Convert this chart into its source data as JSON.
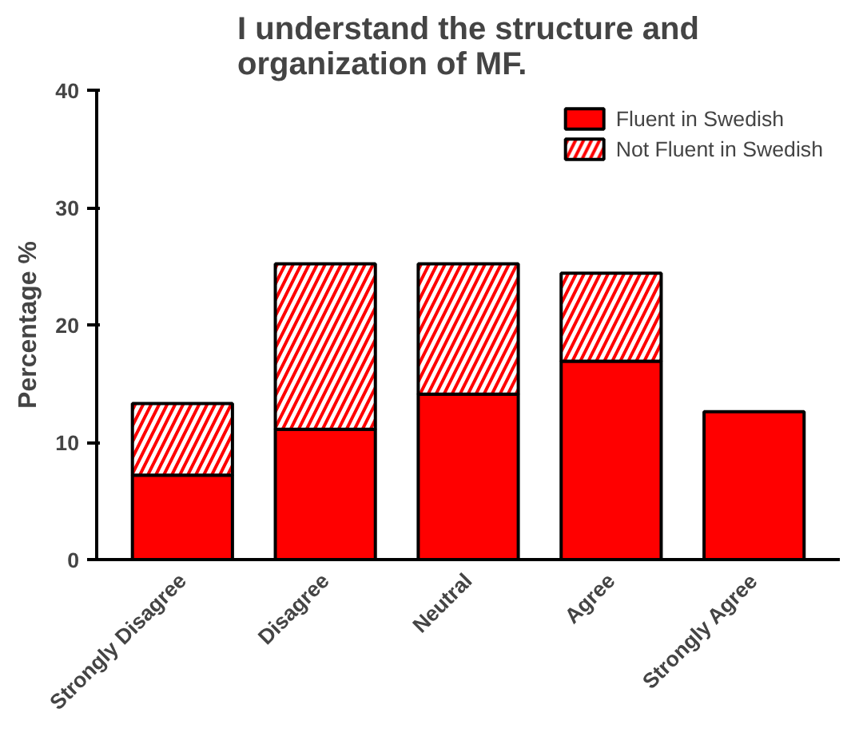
{
  "chart_data": {
    "type": "bar",
    "title": "I understand the structure and organization of MF.",
    "ylabel": "Percentage %",
    "categories": [
      "Strongly Disagree",
      "Disagree",
      "Neutral",
      "Agree",
      "Strongly Agree"
    ],
    "stacked": true,
    "ylim": [
      0,
      40
    ],
    "yticks": [
      0,
      10,
      20,
      30,
      40
    ],
    "grid": false,
    "legend": "top right",
    "series": [
      {
        "name": "Fluent in Swedish",
        "color": "#ff0000",
        "values": [
          7.2,
          11.1,
          14.1,
          16.9,
          12.6
        ]
      },
      {
        "name": "Not Fluent in Swedish",
        "color": "#ff0000",
        "values": [
          6.1,
          14.1,
          11.1,
          7.5,
          null
        ]
      }
    ]
  }
}
